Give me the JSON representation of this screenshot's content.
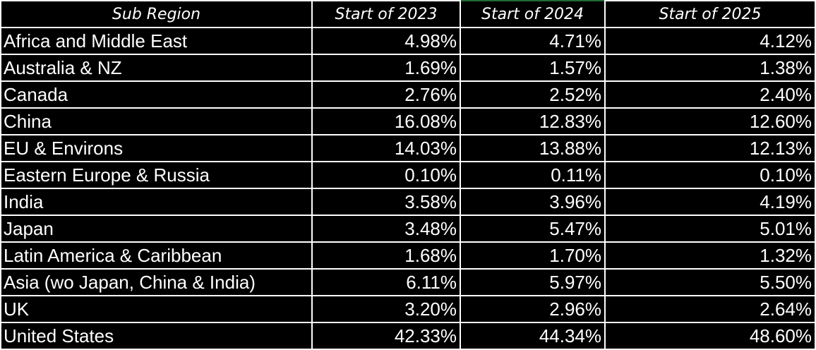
{
  "table": {
    "headers": [
      "Sub Region",
      "Start of 2023",
      "Start of 2024",
      "Start of 2025"
    ],
    "rows": [
      {
        "region": "Africa and Middle East",
        "y2023": "4.98%",
        "y2024": "4.71%",
        "y2025": "4.12%"
      },
      {
        "region": "Australia & NZ",
        "y2023": "1.69%",
        "y2024": "1.57%",
        "y2025": "1.38%"
      },
      {
        "region": "Canada",
        "y2023": "2.76%",
        "y2024": "2.52%",
        "y2025": "2.40%"
      },
      {
        "region": "China",
        "y2023": "16.08%",
        "y2024": "12.83%",
        "y2025": "12.60%"
      },
      {
        "region": "EU & Environs",
        "y2023": "14.03%",
        "y2024": "13.88%",
        "y2025": "12.13%"
      },
      {
        "region": "Eastern Europe & Russia",
        "y2023": "0.10%",
        "y2024": "0.11%",
        "y2025": "0.10%"
      },
      {
        "region": "India",
        "y2023": "3.58%",
        "y2024": "3.96%",
        "y2025": "4.19%"
      },
      {
        "region": "Japan",
        "y2023": "3.48%",
        "y2024": "5.47%",
        "y2025": "5.01%"
      },
      {
        "region": "Latin America & Caribbean",
        "y2023": "1.68%",
        "y2024": "1.70%",
        "y2025": "1.32%"
      },
      {
        "region": "Asia (wo Japan, China & India)",
        "y2023": "6.11%",
        "y2024": "5.97%",
        "y2025": "5.50%"
      },
      {
        "region": "UK",
        "y2023": "3.20%",
        "y2024": "2.96%",
        "y2025": "2.64%"
      },
      {
        "region": "United States",
        "y2023": "42.33%",
        "y2024": "44.34%",
        "y2025": "48.60%"
      }
    ]
  },
  "colors": {
    "background": "#000000",
    "text": "#ffffff",
    "gridline": "#ffffff",
    "active_column_accent": "#1f6b34"
  }
}
